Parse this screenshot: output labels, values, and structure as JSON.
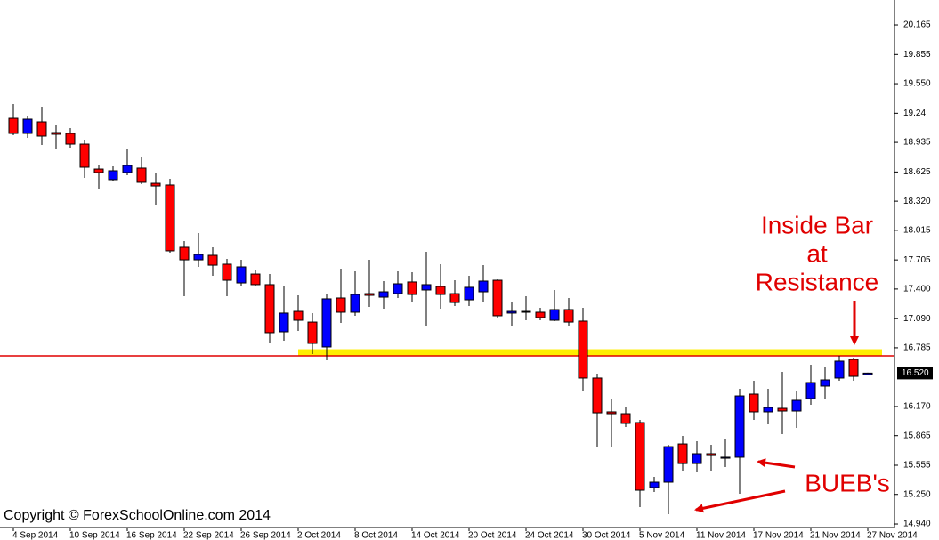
{
  "chart_data": {
    "type": "candlestick",
    "categories": [
      "4 Sep 2014",
      null,
      null,
      null,
      "10 Sep 2014",
      null,
      null,
      null,
      "16 Sep 2014",
      null,
      null,
      null,
      "22 Sep 2014",
      null,
      null,
      null,
      "26 Sep 2014",
      null,
      null,
      null,
      "2 Oct 2014",
      null,
      null,
      null,
      "8 Oct 2014",
      null,
      null,
      null,
      "14 Oct 2014",
      null,
      null,
      null,
      "20 Oct 2014",
      null,
      null,
      null,
      "24 Oct 2014",
      null,
      null,
      null,
      "30 Oct 2014",
      null,
      null,
      null,
      "5 Nov 2014",
      null,
      null,
      null,
      "11 Nov 2014",
      null,
      null,
      null,
      "17 Nov 2014",
      null,
      null,
      null,
      "21 Nov 2014",
      null,
      null,
      null,
      "27 Nov 2014"
    ],
    "open": [
      19.187,
      19.029,
      19.15,
      19.038,
      19.029,
      18.917,
      18.656,
      18.545,
      18.619,
      18.666,
      18.507,
      18.489,
      17.837,
      17.706,
      17.753,
      17.66,
      17.464,
      17.557,
      17.446,
      16.952,
      17.166,
      17.054,
      16.794,
      17.306,
      17.157,
      17.352,
      17.315,
      17.352,
      17.474,
      17.39,
      17.427,
      17.352,
      17.287,
      17.371,
      17.492,
      17.148,
      17.157,
      17.157,
      17.073,
      17.185,
      17.064,
      16.468,
      16.114,
      16.095,
      16.002,
      15.322,
      15.378,
      15.778,
      15.573,
      15.676,
      15.629,
      15.639,
      16.3,
      16.114,
      16.151,
      16.123,
      16.253,
      16.384,
      16.468,
      16.663,
      16.505
    ],
    "high": [
      19.336,
      19.215,
      19.308,
      19.122,
      19.085,
      18.964,
      18.703,
      18.684,
      18.861,
      18.777,
      18.61,
      18.554,
      17.902,
      17.986,
      17.837,
      17.716,
      17.706,
      17.595,
      17.557,
      17.427,
      17.334,
      17.148,
      17.352,
      17.613,
      17.585,
      17.706,
      17.483,
      17.585,
      17.576,
      17.79,
      17.66,
      17.492,
      17.539,
      17.65,
      17.501,
      17.269,
      17.324,
      17.203,
      17.39,
      17.306,
      17.203,
      16.514,
      16.253,
      16.17,
      16.03,
      15.434,
      15.769,
      15.862,
      15.806,
      15.769,
      15.825,
      16.356,
      16.44,
      16.356,
      16.533,
      16.328,
      16.607,
      16.589,
      16.7,
      16.682,
      16.525
    ],
    "low": [
      19.01,
      18.982,
      18.908,
      18.871,
      18.88,
      18.563,
      18.451,
      18.526,
      18.591,
      18.498,
      18.284,
      17.781,
      17.324,
      17.632,
      17.539,
      17.324,
      17.427,
      17.427,
      16.84,
      16.859,
      16.961,
      16.719,
      16.654,
      17.045,
      17.12,
      17.213,
      17.194,
      17.306,
      17.259,
      17.008,
      17.194,
      17.222,
      17.222,
      17.259,
      17.101,
      17.017,
      17.073,
      17.073,
      17.064,
      17.017,
      16.328,
      15.741,
      15.75,
      15.955,
      15.117,
      15.275,
      15.043,
      15.49,
      15.48,
      15.49,
      15.536,
      15.257,
      16.03,
      15.983,
      15.881,
      15.946,
      16.188,
      16.253,
      16.44,
      16.44,
      16.496
    ],
    "close": [
      19.029,
      19.178,
      19.001,
      19.02,
      18.917,
      18.675,
      18.619,
      18.638,
      18.694,
      18.517,
      18.479,
      17.8,
      17.706,
      17.762,
      17.65,
      17.492,
      17.632,
      17.446,
      16.943,
      17.148,
      17.073,
      16.831,
      17.297,
      17.157,
      17.343,
      17.334,
      17.371,
      17.455,
      17.343,
      17.446,
      17.343,
      17.259,
      17.418,
      17.483,
      17.12,
      17.166,
      17.166,
      17.101,
      17.185,
      17.054,
      16.468,
      16.104,
      16.095,
      15.993,
      15.294,
      15.378,
      15.75,
      15.573,
      15.676,
      15.657,
      15.639,
      16.281,
      16.114,
      16.16,
      16.123,
      16.235,
      16.421,
      16.449,
      16.645,
      16.486,
      16.52
    ],
    "up_color": "#0000ff",
    "down_color": "#ff0000",
    "ylim": [
      14.903,
      20.426
    ],
    "yticks": [
      20.165,
      19.855,
      {
        "value": 19.55,
        "label": "19.550"
      },
      19.24,
      18.935,
      18.625,
      {
        "value": 18.32,
        "label": "18.320"
      },
      18.015,
      17.705,
      {
        "value": 17.4,
        "label": "17.400"
      },
      {
        "value": 17.09,
        "label": "17.090"
      },
      16.785,
      {
        "value": 16.17,
        "label": "16.170"
      },
      15.865,
      15.555,
      {
        "value": 15.25,
        "label": "15.250"
      },
      {
        "value": 14.94,
        "label": "14.940"
      }
    ],
    "current_price": {
      "value": 16.52,
      "label": "16.520"
    },
    "resistance_line": 16.7,
    "resistance_zone": [
      16.7,
      16.77
    ],
    "annotations": {
      "inside_bar": [
        "Inside Bar",
        "at",
        "Resistance"
      ],
      "bueb": "BUEB's"
    },
    "copyright": "Copyright © ForexSchoolOnline.com 2014"
  }
}
